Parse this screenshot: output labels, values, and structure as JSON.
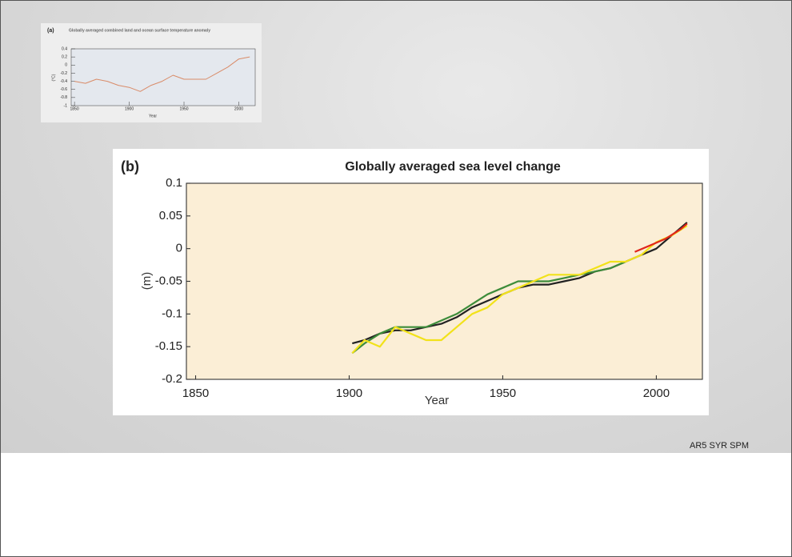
{
  "source": "AR5 SYR SPM",
  "chart_data": [
    {
      "type": "line",
      "panel_label": "(a)",
      "title": "Globally averaged combined land and ocean surface temperature anomaly",
      "y_label": "(°C)",
      "x_label": "Year",
      "x": [
        1850,
        1860,
        1870,
        1880,
        1890,
        1900,
        1910,
        1920,
        1930,
        1940,
        1950,
        1960,
        1970,
        1980,
        1990,
        2000,
        2010
      ],
      "values": [
        -0.4,
        -0.45,
        -0.35,
        -0.4,
        -0.5,
        -0.55,
        -0.65,
        -0.5,
        -0.4,
        -0.25,
        -0.35,
        -0.35,
        -0.35,
        -0.2,
        -0.05,
        0.15,
        0.2
      ],
      "color": "#d98b68",
      "xlim": [
        1847,
        2015
      ],
      "xticks": [
        1850,
        1900,
        1950,
        2000
      ],
      "ylim": [
        -1,
        0.4
      ],
      "yticks": [
        0.4,
        0.2,
        0,
        -0.2,
        -0.4,
        -0.6,
        -0.8,
        -1
      ],
      "background": "#e4e8ee"
    },
    {
      "type": "line",
      "panel_label": "(b)",
      "title": "Globally averaged sea level change",
      "y_label": "(m)",
      "x_label": "Year",
      "series": [
        {
          "color": "#222222",
          "x": [
            1901,
            1905,
            1910,
            1915,
            1920,
            1925,
            1930,
            1935,
            1940,
            1945,
            1950,
            1955,
            1960,
            1965,
            1970,
            1975,
            1980,
            1985,
            1990,
            1995,
            2000,
            2005,
            2010
          ],
          "values": [
            -0.145,
            -0.14,
            -0.13,
            -0.125,
            -0.125,
            -0.12,
            -0.115,
            -0.105,
            -0.09,
            -0.08,
            -0.07,
            -0.06,
            -0.055,
            -0.055,
            -0.05,
            -0.045,
            -0.035,
            -0.03,
            -0.02,
            -0.01,
            0,
            0.02,
            0.04
          ]
        },
        {
          "color": "#3d8c3a",
          "x": [
            1901,
            1905,
            1910,
            1915,
            1920,
            1925,
            1930,
            1935,
            1940,
            1945,
            1950,
            1955,
            1960,
            1965,
            1970,
            1975,
            1980,
            1985,
            1990
          ],
          "values": [
            -0.16,
            -0.145,
            -0.13,
            -0.12,
            -0.12,
            -0.12,
            -0.11,
            -0.1,
            -0.085,
            -0.07,
            -0.06,
            -0.05,
            -0.05,
            -0.05,
            -0.045,
            -0.04,
            -0.035,
            -0.03,
            -0.02
          ]
        },
        {
          "color": "#f2e21a",
          "x": [
            1901,
            1905,
            1910,
            1915,
            1920,
            1925,
            1930,
            1935,
            1940,
            1945,
            1950,
            1955,
            1960,
            1965,
            1970,
            1975,
            1980,
            1985,
            1990,
            1995,
            2000,
            2005,
            2010
          ],
          "values": [
            -0.16,
            -0.14,
            -0.15,
            -0.12,
            -0.13,
            -0.14,
            -0.14,
            -0.12,
            -0.1,
            -0.09,
            -0.07,
            -0.06,
            -0.05,
            -0.04,
            -0.04,
            -0.04,
            -0.03,
            -0.02,
            -0.02,
            -0.01,
            0.01,
            0.02,
            0.035
          ]
        },
        {
          "color": "#e0261c",
          "x": [
            1993,
            1998,
            2003,
            2008,
            2010
          ],
          "values": [
            -0.005,
            0.005,
            0.015,
            0.03,
            0.038
          ]
        }
      ],
      "xlim": [
        1847,
        2015
      ],
      "xticks": [
        1850,
        1900,
        1950,
        2000
      ],
      "ylim": [
        -0.2,
        0.1
      ],
      "yticks": [
        0.1,
        0.05,
        0,
        -0.05,
        -0.1,
        -0.15,
        -0.2
      ],
      "background": "#fbeed6"
    }
  ]
}
